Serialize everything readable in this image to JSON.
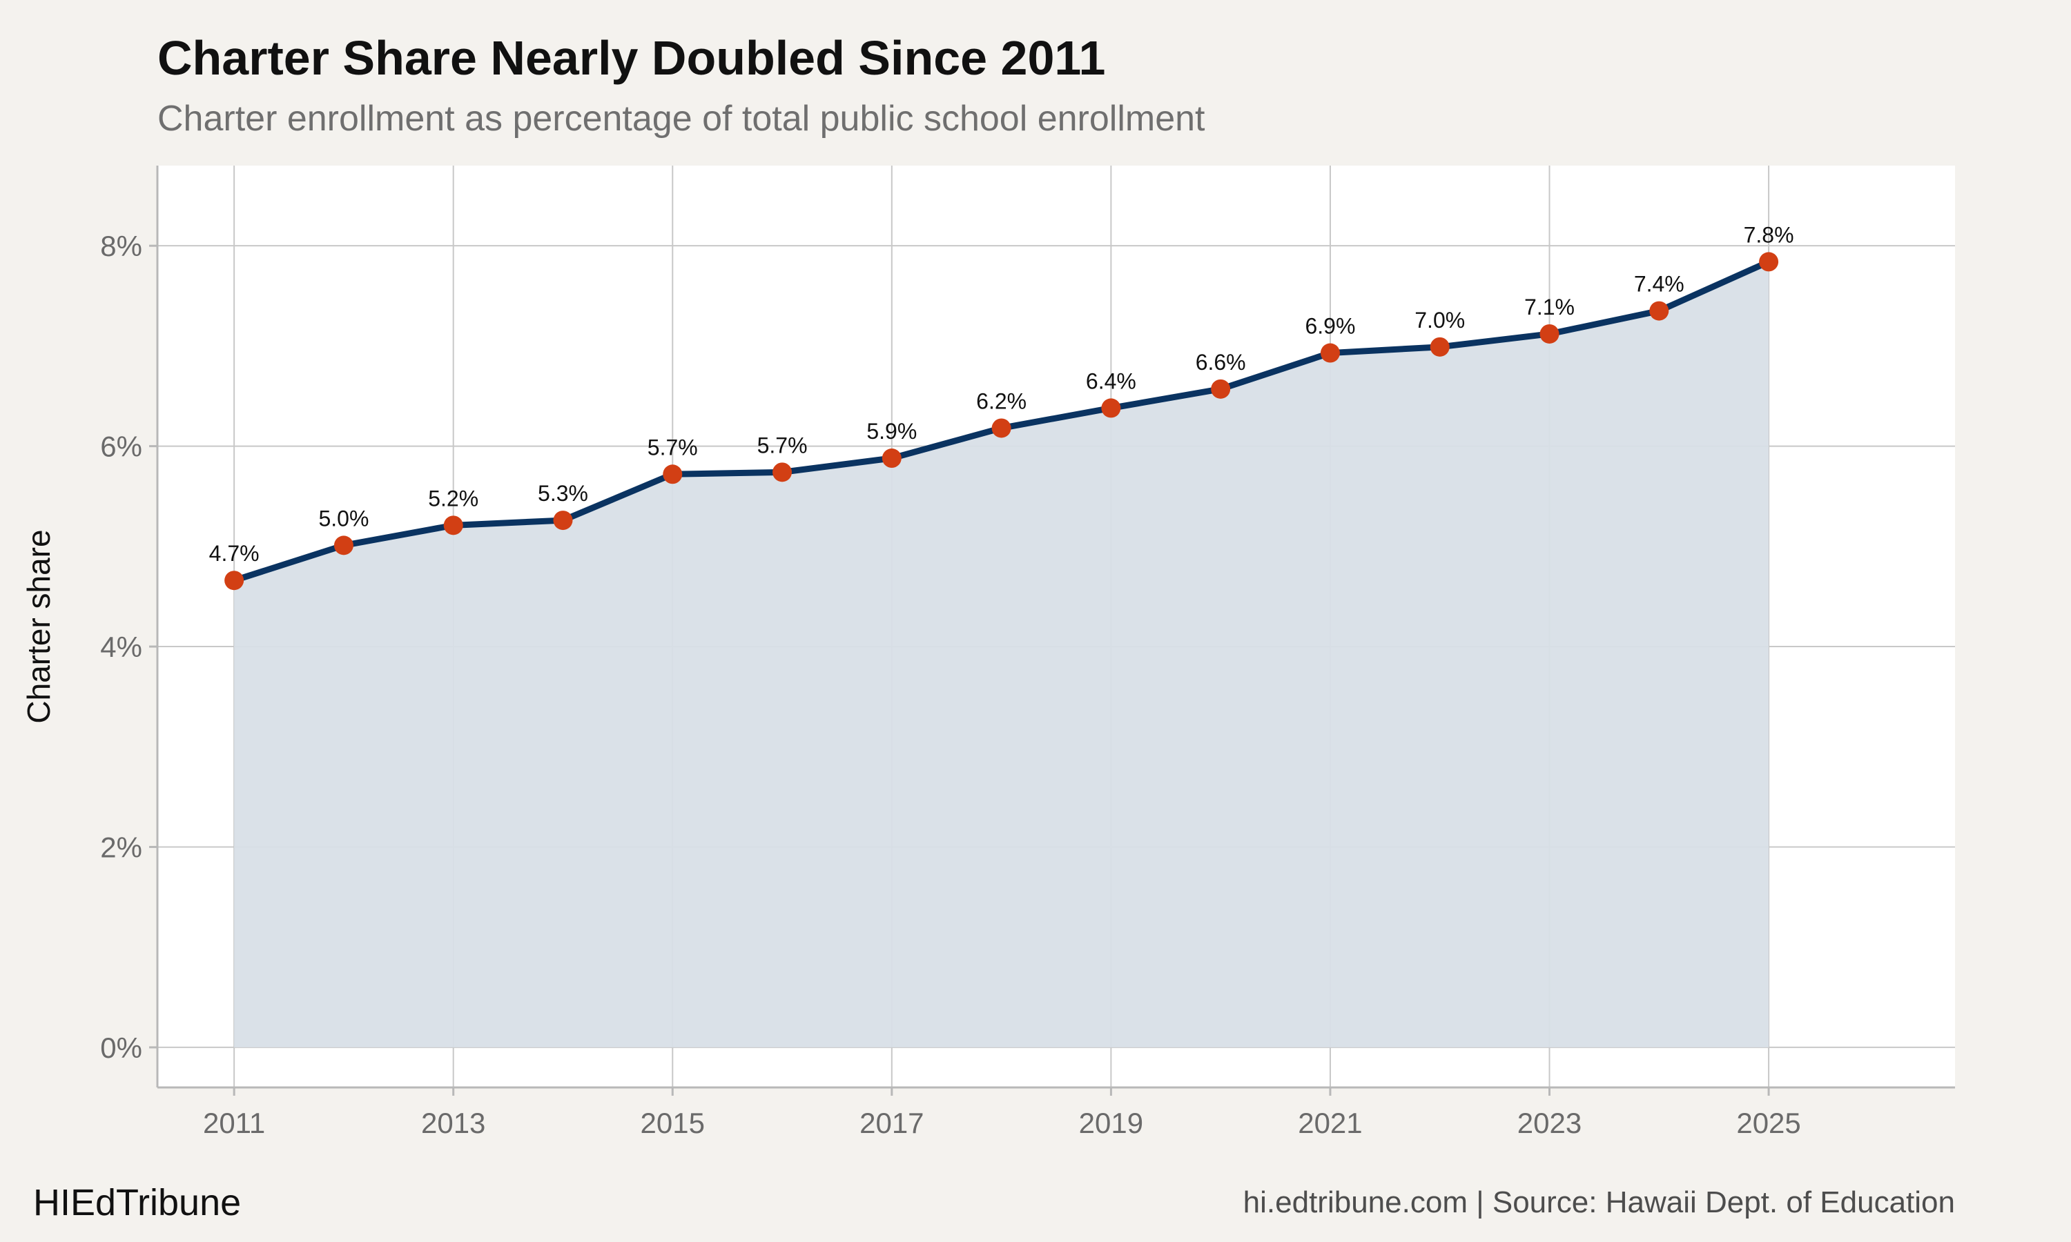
{
  "header": {
    "title": "Charter Share Nearly Doubled Since 2011",
    "subtitle": "Charter enrollment as percentage of total public school enrollment"
  },
  "footer": {
    "brand": "HIEdTribune",
    "source": "hi.edtribune.com | Source: Hawaii Dept. of Education"
  },
  "colors": {
    "background": "#f4f2ee",
    "panel": "#ffffff",
    "grid": "#c8c8c8",
    "line": "#0a3361",
    "area": "#d8dfe7",
    "point": "#d23f14"
  },
  "chart_data": {
    "type": "area",
    "title": "Charter Share Nearly Doubled Since 2011",
    "subtitle": "Charter enrollment as percentage of total public school enrollment",
    "xlabel": "",
    "ylabel": "Charter share",
    "x": [
      2011,
      2012,
      2013,
      2014,
      2015,
      2016,
      2017,
      2018,
      2019,
      2020,
      2021,
      2022,
      2023,
      2024,
      2025
    ],
    "values": [
      4.66,
      5.01,
      5.21,
      5.26,
      5.72,
      5.74,
      5.88,
      6.18,
      6.38,
      6.57,
      6.93,
      6.99,
      7.12,
      7.35,
      7.84
    ],
    "data_labels": [
      "4.7%",
      "5.0%",
      "5.2%",
      "5.3%",
      "5.7%",
      "5.7%",
      "5.9%",
      "6.2%",
      "6.4%",
      "6.6%",
      "6.9%",
      "7.0%",
      "7.1%",
      "7.4%",
      "7.8%"
    ],
    "xlim": [
      2010.3,
      2026.7
    ],
    "ylim": [
      -0.4,
      8.8
    ],
    "x_ticks": [
      2011,
      2013,
      2015,
      2017,
      2019,
      2021,
      2023,
      2025
    ],
    "x_tick_labels": [
      "2011",
      "2013",
      "2015",
      "2017",
      "2019",
      "2021",
      "2023",
      "2025"
    ],
    "y_ticks": [
      0,
      2,
      4,
      6,
      8
    ],
    "y_tick_labels": [
      "0%",
      "2%",
      "4%",
      "6%",
      "8%"
    ],
    "grid": true,
    "legend": "none"
  }
}
